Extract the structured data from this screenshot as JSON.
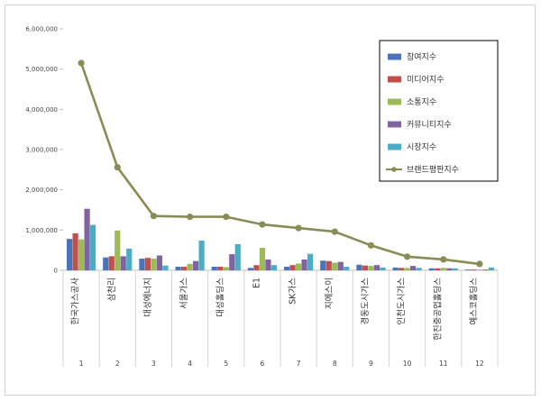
{
  "chart_data": {
    "type": "bar",
    "ylim": [
      0,
      6000000
    ],
    "yticks": [
      "0",
      "1,000,000",
      "2,000,000",
      "3,000,000",
      "4,000,000",
      "5,000,000",
      "6,000,000"
    ],
    "ytick_values": [
      0,
      1000000,
      2000000,
      3000000,
      4000000,
      5000000,
      6000000
    ],
    "grid": false,
    "legend_position": "top-right",
    "categories": [
      "한국가스공사",
      "삼천리",
      "대성에너지",
      "서울가스",
      "대성홀딩스",
      "E1",
      "SK가스",
      "지에스이",
      "경동도시가스",
      "인천도시가스",
      "한진중공업홀딩스",
      "예스코홀딩스"
    ],
    "indices": [
      "1",
      "2",
      "3",
      "4",
      "5",
      "6",
      "7",
      "8",
      "9",
      "10",
      "11",
      "12"
    ],
    "series": [
      {
        "name": "참여지수",
        "kind": "bar",
        "color": "#4a73b8",
        "values": [
          780000,
          320000,
          290000,
          90000,
          90000,
          60000,
          90000,
          240000,
          140000,
          70000,
          50000,
          20000
        ]
      },
      {
        "name": "미디어지수",
        "kind": "bar",
        "color": "#c0504d",
        "values": [
          920000,
          350000,
          310000,
          90000,
          90000,
          130000,
          130000,
          230000,
          120000,
          60000,
          50000,
          20000
        ]
      },
      {
        "name": "소통지수",
        "kind": "bar",
        "color": "#9bbb59",
        "values": [
          770000,
          990000,
          290000,
          160000,
          80000,
          560000,
          170000,
          190000,
          110000,
          60000,
          60000,
          20000
        ]
      },
      {
        "name": "커뮤니티지수",
        "kind": "bar",
        "color": "#8064a2",
        "values": [
          1530000,
          350000,
          370000,
          230000,
          400000,
          270000,
          270000,
          210000,
          130000,
          110000,
          50000,
          20000
        ]
      },
      {
        "name": "시장지수",
        "kind": "bar",
        "color": "#4bacc6",
        "values": [
          1130000,
          540000,
          120000,
          740000,
          650000,
          130000,
          410000,
          90000,
          70000,
          60000,
          50000,
          70000
        ]
      },
      {
        "name": "브랜드평판지수",
        "kind": "line",
        "color": "#8b8b56",
        "values": [
          5150000,
          2560000,
          1350000,
          1330000,
          1330000,
          1140000,
          1050000,
          960000,
          620000,
          340000,
          270000,
          160000
        ]
      }
    ]
  }
}
